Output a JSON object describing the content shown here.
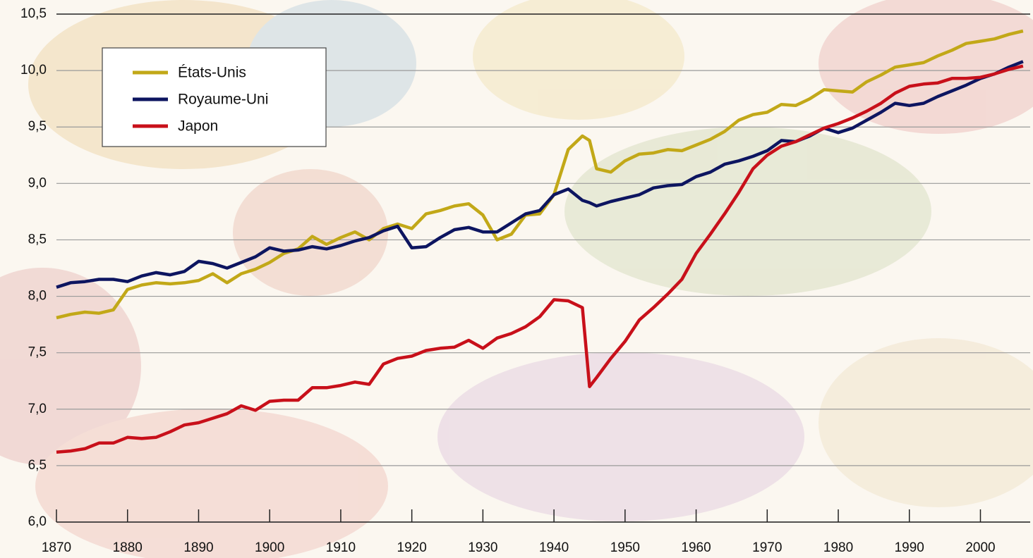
{
  "chart_data": {
    "type": "line",
    "x": [
      1870,
      1872,
      1874,
      1876,
      1878,
      1880,
      1882,
      1884,
      1886,
      1888,
      1890,
      1892,
      1894,
      1896,
      1898,
      1900,
      1902,
      1904,
      1906,
      1908,
      1910,
      1912,
      1914,
      1916,
      1918,
      1920,
      1922,
      1924,
      1926,
      1928,
      1930,
      1932,
      1934,
      1936,
      1938,
      1940,
      1942,
      1944,
      1945,
      1946,
      1948,
      1950,
      1952,
      1954,
      1956,
      1958,
      1960,
      1962,
      1964,
      1966,
      1968,
      1970,
      1972,
      1974,
      1976,
      1978,
      1980,
      1982,
      1984,
      1986,
      1988,
      1990,
      1992,
      1994,
      1996,
      1998,
      2000,
      2002,
      2004,
      2006
    ],
    "series": [
      {
        "name": "États-Unis",
        "color": "#c2a818",
        "values": [
          7.81,
          7.84,
          7.86,
          7.85,
          7.88,
          8.06,
          8.1,
          8.12,
          8.11,
          8.12,
          8.14,
          8.2,
          8.12,
          8.2,
          8.24,
          8.3,
          8.38,
          8.42,
          8.53,
          8.46,
          8.52,
          8.57,
          8.5,
          8.6,
          8.64,
          8.6,
          8.73,
          8.76,
          8.8,
          8.82,
          8.72,
          8.5,
          8.55,
          8.72,
          8.73,
          8.9,
          9.3,
          9.42,
          9.38,
          9.13,
          9.1,
          9.2,
          9.26,
          9.27,
          9.3,
          9.29,
          9.34,
          9.39,
          9.46,
          9.56,
          9.61,
          9.63,
          9.7,
          9.69,
          9.75,
          9.83,
          9.82,
          9.81,
          9.9,
          9.96,
          10.03,
          10.05,
          10.07,
          10.13,
          10.18,
          10.24,
          10.26,
          10.28,
          10.32,
          10.35
        ]
      },
      {
        "name": "Royaume-Uni",
        "color": "#0d1560",
        "values": [
          8.08,
          8.12,
          8.13,
          8.15,
          8.15,
          8.13,
          8.18,
          8.21,
          8.19,
          8.22,
          8.31,
          8.29,
          8.25,
          8.3,
          8.35,
          8.43,
          8.4,
          8.41,
          8.44,
          8.42,
          8.45,
          8.49,
          8.52,
          8.58,
          8.62,
          8.43,
          8.44,
          8.52,
          8.59,
          8.61,
          8.57,
          8.57,
          8.65,
          8.73,
          8.76,
          8.9,
          8.95,
          8.85,
          8.83,
          8.8,
          8.84,
          8.87,
          8.9,
          8.96,
          8.98,
          8.99,
          9.06,
          9.1,
          9.17,
          9.2,
          9.24,
          9.29,
          9.38,
          9.37,
          9.42,
          9.49,
          9.45,
          9.49,
          9.56,
          9.63,
          9.71,
          9.69,
          9.71,
          9.77,
          9.82,
          9.87,
          9.93,
          9.97,
          10.03,
          10.08
        ]
      },
      {
        "name": "Japon",
        "color": "#c8101a",
        "values": [
          6.62,
          6.63,
          6.65,
          6.7,
          6.7,
          6.75,
          6.74,
          6.75,
          6.8,
          6.86,
          6.88,
          6.92,
          6.96,
          7.03,
          6.99,
          7.07,
          7.08,
          7.08,
          7.19,
          7.19,
          7.21,
          7.24,
          7.22,
          7.4,
          7.45,
          7.47,
          7.52,
          7.54,
          7.55,
          7.61,
          7.54,
          7.63,
          7.67,
          7.73,
          7.82,
          7.97,
          7.96,
          7.9,
          7.2,
          7.28,
          7.45,
          7.6,
          7.79,
          7.9,
          8.02,
          8.15,
          8.38,
          8.55,
          8.73,
          8.92,
          9.13,
          9.25,
          9.33,
          9.37,
          9.43,
          9.49,
          9.53,
          9.58,
          9.64,
          9.71,
          9.8,
          9.86,
          9.88,
          9.89,
          9.93,
          9.93,
          9.94,
          9.97,
          10.01,
          10.04
        ]
      }
    ],
    "xlim": [
      1870,
      2007
    ],
    "xticks": [
      1870,
      1880,
      1890,
      1900,
      1910,
      1920,
      1930,
      1940,
      1950,
      1960,
      1970,
      1980,
      1990,
      2000
    ],
    "ylim": [
      6,
      10.5
    ],
    "yticks": [
      {
        "value": 6,
        "label": "6,0"
      },
      {
        "value": 6.5,
        "label": "6,5"
      },
      {
        "value": 7,
        "label": "7,0"
      },
      {
        "value": 7.5,
        "label": "7,5"
      },
      {
        "value": 8,
        "label": "8,0"
      },
      {
        "value": 8.5,
        "label": "8,5"
      },
      {
        "value": 9,
        "label": "9,0"
      },
      {
        "value": 9.5,
        "label": "9,5"
      },
      {
        "value": 10,
        "label": "10,0"
      },
      {
        "value": 10.5,
        "label": "10,5"
      }
    ],
    "grid": true,
    "legend": "top-left"
  }
}
